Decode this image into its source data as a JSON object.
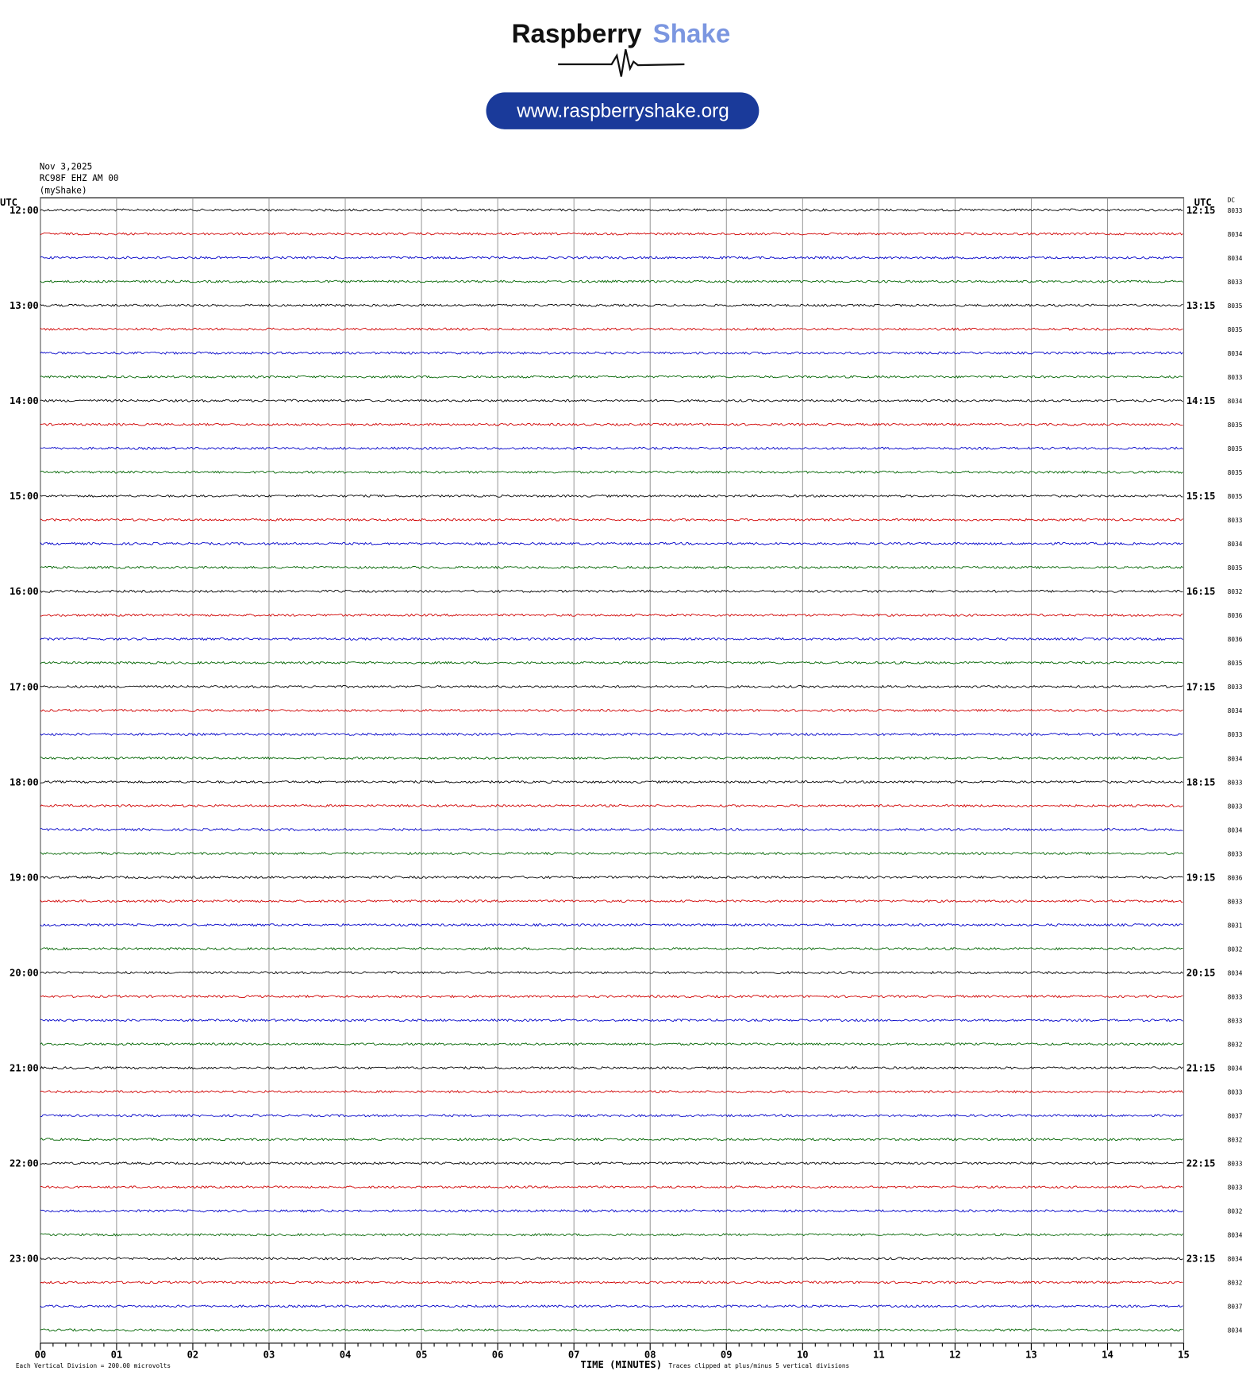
{
  "header": {
    "brand": "Raspberry",
    "brand_accent": "Shake",
    "url": "www.raspberryshake.org"
  },
  "info": {
    "date": "Nov 3,2025",
    "station": "RC98F EHZ AM 00",
    "network": "(myShake)"
  },
  "axis": {
    "left_label": "UTC",
    "right_label": "UTC",
    "dc_label": "DC"
  },
  "hours": [
    {
      "left": "12:00",
      "right": "12:15",
      "dc": [
        8033,
        8034,
        8034,
        8033
      ]
    },
    {
      "left": "13:00",
      "right": "13:15",
      "dc": [
        8035,
        8035,
        8034,
        8033
      ]
    },
    {
      "left": "14:00",
      "right": "14:15",
      "dc": [
        8034,
        8035,
        8035,
        8035
      ]
    },
    {
      "left": "15:00",
      "right": "15:15",
      "dc": [
        8035,
        8033,
        8034,
        8035
      ]
    },
    {
      "left": "16:00",
      "right": "16:15",
      "dc": [
        8032,
        8036,
        8036,
        8035
      ]
    },
    {
      "left": "17:00",
      "right": "17:15",
      "dc": [
        8033,
        8034,
        8033,
        8034
      ]
    },
    {
      "left": "18:00",
      "right": "18:15",
      "dc": [
        8033,
        8033,
        8034,
        8033
      ]
    },
    {
      "left": "19:00",
      "right": "19:15",
      "dc": [
        8036,
        8033,
        8031,
        8032
      ]
    },
    {
      "left": "20:00",
      "right": "20:15",
      "dc": [
        8034,
        8033,
        8033,
        8032
      ]
    },
    {
      "left": "21:00",
      "right": "21:15",
      "dc": [
        8034,
        8033,
        8037,
        8032
      ]
    },
    {
      "left": "22:00",
      "right": "22:15",
      "dc": [
        8033,
        8033,
        8032,
        8034
      ]
    },
    {
      "left": "23:00",
      "right": "23:15",
      "dc": [
        8034,
        8032,
        8037,
        8034
      ]
    }
  ],
  "x_ticks": [
    "00",
    "01",
    "02",
    "03",
    "04",
    "05",
    "06",
    "07",
    "08",
    "09",
    "10",
    "11",
    "12",
    "13",
    "14",
    "15"
  ],
  "footer": {
    "scale": "Each Vertical Division =  200.00 microvolts",
    "x_label": "TIME (MINUTES)",
    "clip": "Traces clipped at plus/minus 5 vertical divisions"
  }
}
